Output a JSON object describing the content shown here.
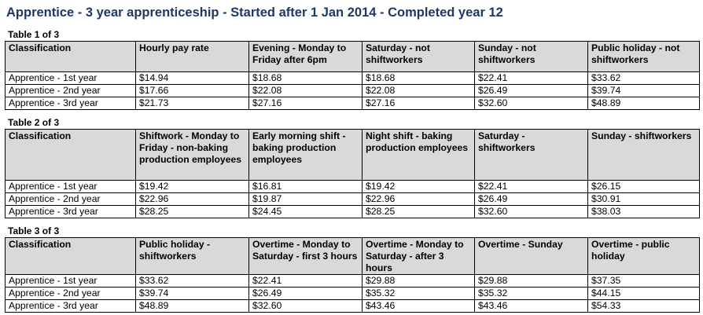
{
  "page_title": "Apprentice - 3 year apprenticeship - Started after 1 Jan 2014 - Completed year 12",
  "tables": [
    {
      "caption": "Table 1 of 3",
      "headers": [
        "Classification",
        "Hourly pay rate",
        "Evening - Monday to Friday after 6pm",
        "Saturday - not shiftworkers",
        "Sunday - not shiftworkers",
        "Public holiday - not shiftworkers"
      ],
      "rows": [
        [
          "Apprentice - 1st year",
          "$14.94",
          "$18.68",
          "$18.68",
          "$22.41",
          "$33.62"
        ],
        [
          "Apprentice - 2nd year",
          "$17.66",
          "$22.08",
          "$22.08",
          "$26.49",
          "$39.74"
        ],
        [
          "Apprentice - 3rd year",
          "$21.73",
          "$27.16",
          "$27.16",
          "$32.60",
          "$48.89"
        ]
      ]
    },
    {
      "caption": "Table 2 of 3",
      "headers": [
        "Classification",
        "Shiftwork - Monday to Friday - non-baking production employees",
        "Early morning shift - baking production employees",
        "Night shift - baking production employees",
        "Saturday - shiftworkers",
        "Sunday - shiftworkers"
      ],
      "rows": [
        [
          "Apprentice - 1st year",
          "$19.42",
          "$16.81",
          "$19.42",
          "$22.41",
          "$26.15"
        ],
        [
          "Apprentice - 2nd year",
          "$22.96",
          "$19.87",
          "$22.96",
          "$26.49",
          "$30.91"
        ],
        [
          "Apprentice - 3rd year",
          "$28.25",
          "$24.45",
          "$28.25",
          "$32.60",
          "$38.03"
        ]
      ]
    },
    {
      "caption": "Table 3 of 3",
      "headers": [
        "Classification",
        "Public holiday - shiftworkers",
        "Overtime - Monday to Saturday - first 3 hours",
        "Overtime - Monday to Saturday - after 3 hours",
        "Overtime - Sunday",
        "Overtime - public holiday"
      ],
      "rows": [
        [
          "Apprentice - 1st year",
          "$33.62",
          "$22.41",
          "$29.88",
          "$29.88",
          "$37.35"
        ],
        [
          "Apprentice - 2nd year",
          "$39.74",
          "$26.49",
          "$35.32",
          "$35.32",
          "$44.15"
        ],
        [
          "Apprentice - 3rd year",
          "$48.89",
          "$32.60",
          "$43.46",
          "$43.46",
          "$54.33"
        ]
      ]
    }
  ]
}
